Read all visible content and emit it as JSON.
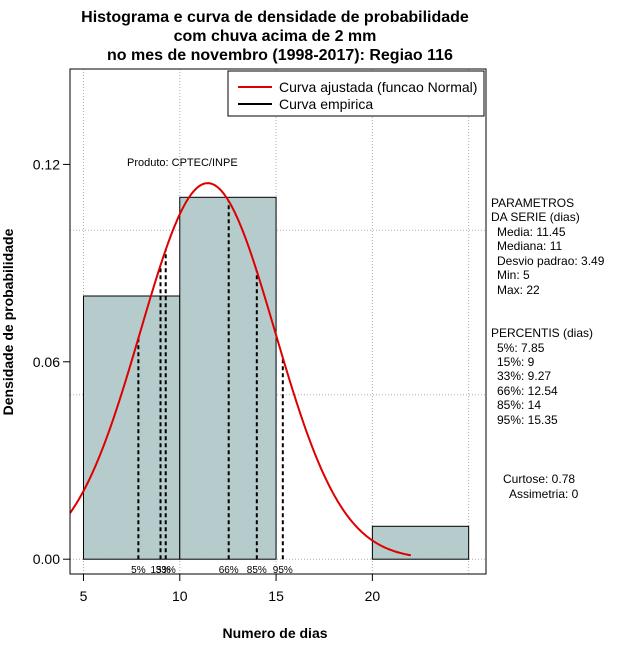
{
  "chart_data": {
    "type": "bar",
    "title_lines": [
      "Histograma e curva de densidade de probabilidade",
      "com chuva acima de 2 mm",
      "no mes de novembro (1998-2017): Regiao 116"
    ],
    "xlabel": "Numero de dias",
    "ylabel": "Densidade de probabilidade",
    "xlim": [
      4.3,
      25.9
    ],
    "ylim": [
      -0.0045,
      0.149
    ],
    "x_ticks": [
      5,
      10,
      15,
      20
    ],
    "y_ticks": [
      0.0,
      0.06,
      0.12
    ],
    "y_tick_labels": [
      "0.00",
      "0.06",
      "0.12"
    ],
    "grid": true,
    "bins": [
      {
        "x0": 5,
        "x1": 10,
        "density": 0.08
      },
      {
        "x0": 10,
        "x1": 15,
        "density": 0.11
      },
      {
        "x0": 20,
        "x1": 25,
        "density": 0.01
      }
    ],
    "normal_curve": {
      "name": "Curva ajustada (funcao Normal)",
      "mean": 11.45,
      "sd": 3.49,
      "x_range": [
        4.3,
        22
      ],
      "color": "#dd0000"
    },
    "empirical_curve": {
      "name": "Curva empirica",
      "color": "#000000"
    },
    "legend_position": "top-right",
    "source_text": "Produto: CPTEC/INPE",
    "percentile_lines": [
      {
        "label": "5%",
        "x": 7.85
      },
      {
        "label": "15%",
        "x": 9
      },
      {
        "label": "33%",
        "x": 9.27
      },
      {
        "label": "66%",
        "x": 12.54
      },
      {
        "label": "85%",
        "x": 14
      },
      {
        "label": "95%",
        "x": 15.35
      }
    ],
    "parameters": {
      "heading": [
        "PARAMETROS",
        "DA SERIE (dias)"
      ],
      "lines": [
        "Media: 11.45",
        "Mediana: 11",
        "Desvio padrao: 3.49",
        "Min: 5",
        "Max: 22"
      ]
    },
    "percentis": {
      "heading": "PERCENTIS (dias)",
      "lines": [
        "5%: 7.85",
        "15%: 9",
        "33%: 9.27",
        "66%: 12.54",
        "85%: 14",
        "95%: 15.35"
      ]
    },
    "shape": {
      "lines": [
        "Curtose: 0.78",
        "Assimetria: 0"
      ]
    },
    "colors": {
      "bar_fill": "#b6cccc",
      "bar_stroke": "#000000",
      "grid": "#b0b0b0"
    }
  }
}
